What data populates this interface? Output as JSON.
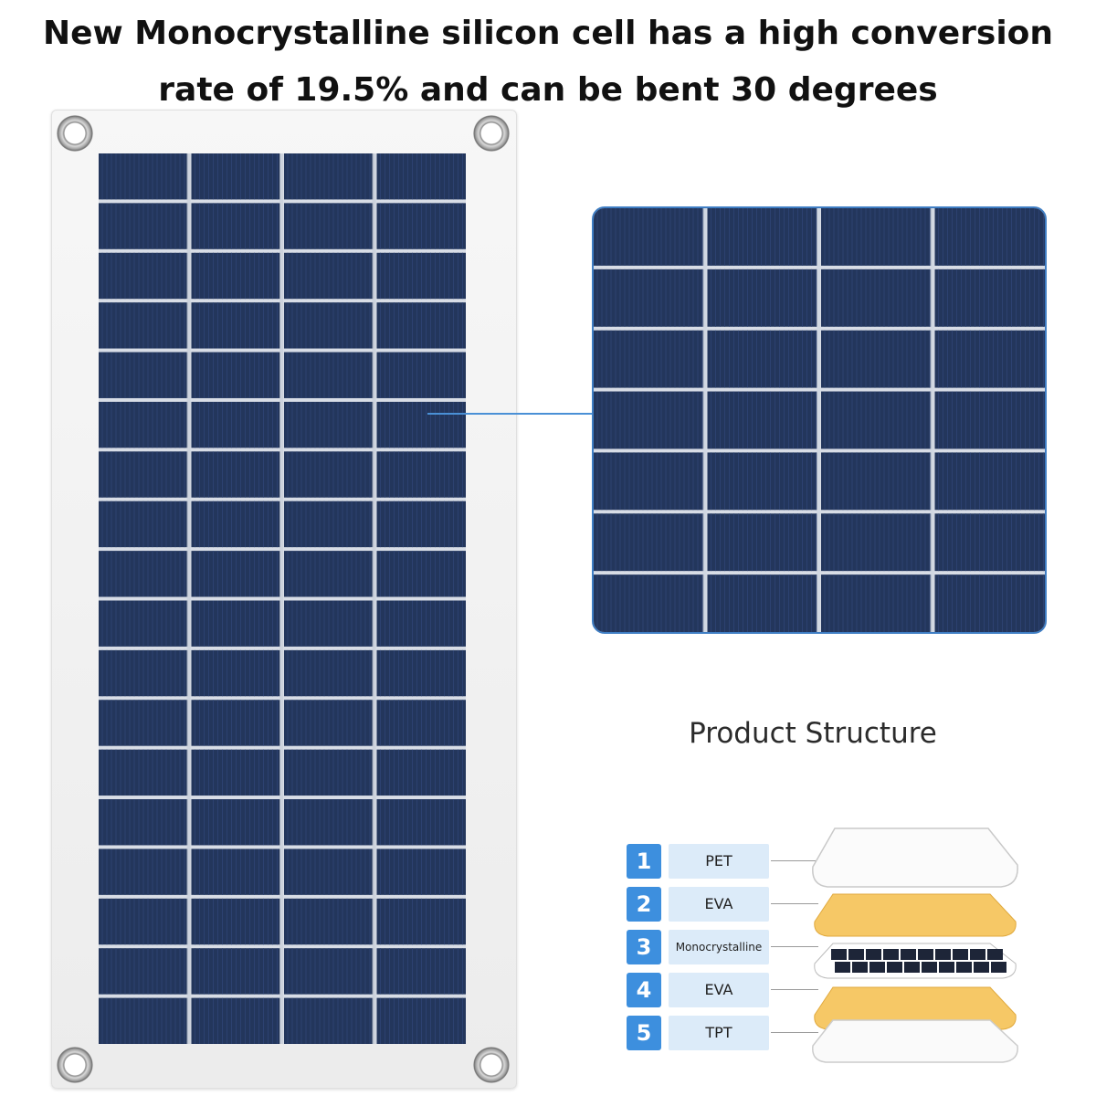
{
  "headline": {
    "line1": "New Monocrystalline silicon cell has a high conversion",
    "line2": "rate of 19.5% and can be bent 30 degrees"
  },
  "colors": {
    "cell_blue": "#23365c",
    "frame_white": "#f2f2f2",
    "accent_blue": "#3d8fde",
    "label_bg": "#dcebf9",
    "eva_yellow": "#f6c866"
  },
  "icons": {
    "grommet": "mounting-grommet-icon"
  },
  "structure": {
    "title": "Product Structure",
    "layers": [
      {
        "num": "1",
        "label": "PET"
      },
      {
        "num": "2",
        "label": "EVA"
      },
      {
        "num": "3",
        "label": "Monocrystalline"
      },
      {
        "num": "4",
        "label": "EVA"
      },
      {
        "num": "5",
        "label": "TPT"
      }
    ]
  }
}
